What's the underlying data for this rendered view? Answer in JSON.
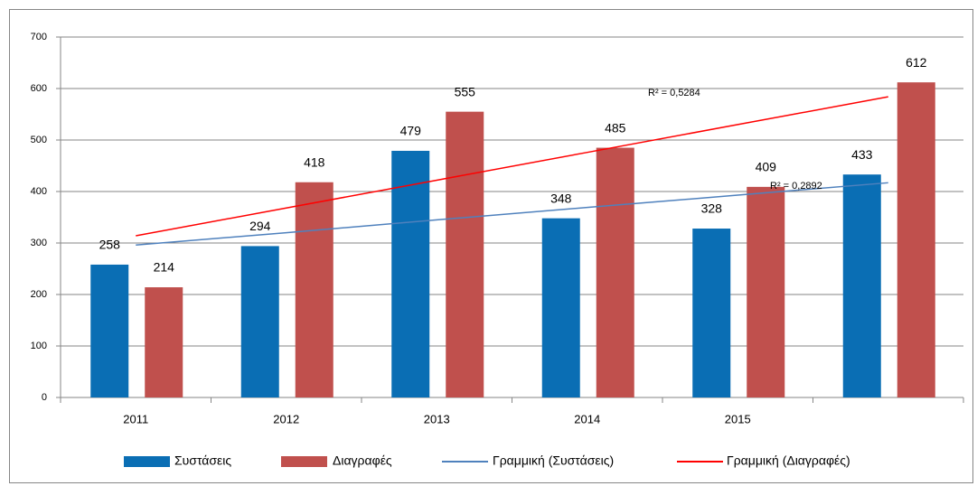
{
  "chart_data": {
    "type": "bar",
    "categories": [
      "2011",
      "2012",
      "2013",
      "2014",
      "2015",
      null
    ],
    "series": [
      {
        "name": "Συστάσεις",
        "color": "#0a6eb4",
        "values": [
          258,
          294,
          479,
          348,
          328,
          433
        ]
      },
      {
        "name": "Διαγραφές",
        "color": "#c0504d",
        "values": [
          214,
          418,
          555,
          485,
          409,
          612
        ]
      },
      {
        "name": "Γραμμική (Συστάσεις)",
        "type": "line",
        "color": "#4f81bd",
        "values": [
          296,
          320,
          345,
          369,
          393,
          417
        ]
      },
      {
        "name": "Γραμμική (Διαγραφές)",
        "type": "line",
        "color": "#ff0000",
        "values": [
          314,
          368,
          422,
          476,
          530,
          584
        ]
      }
    ],
    "annotations": [
      "R² = 0,5284",
      "R² = 0,2892"
    ],
    "ylim": [
      0,
      700
    ],
    "yticks": [
      0,
      100,
      200,
      300,
      400,
      500,
      600,
      700
    ],
    "grid": true,
    "legend": "bottom"
  }
}
